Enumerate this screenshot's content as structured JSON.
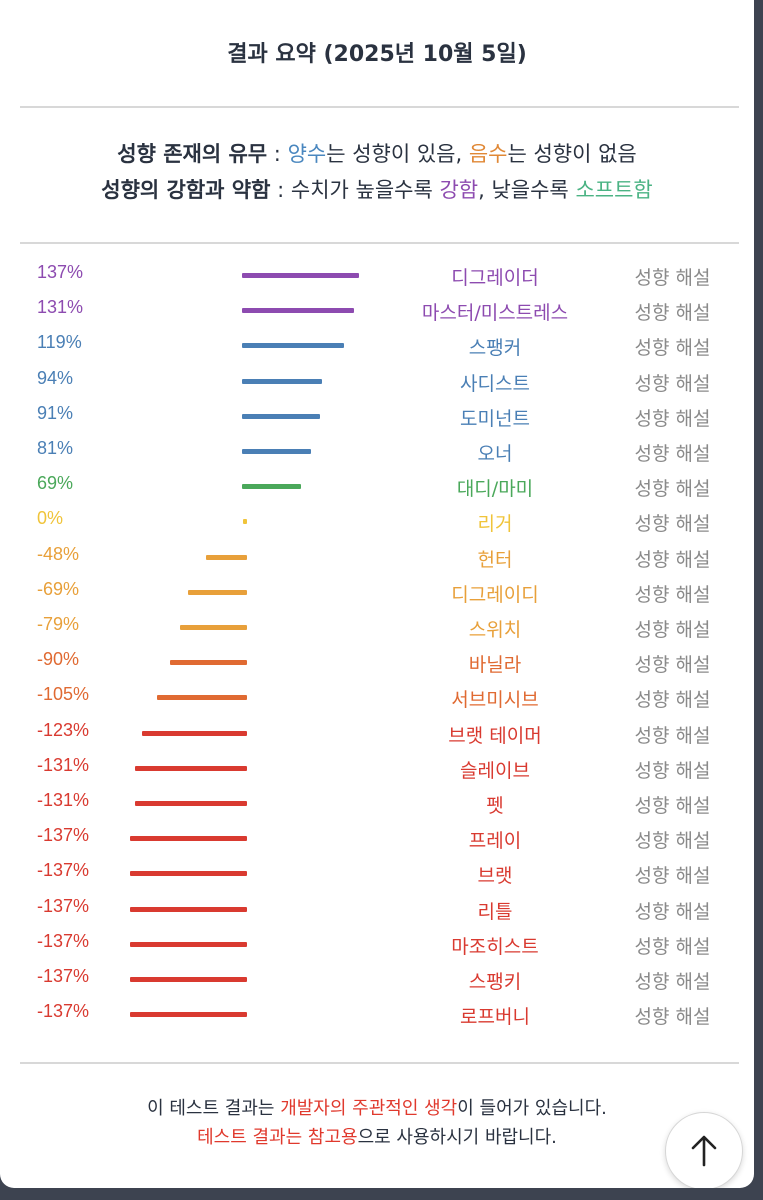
{
  "title": "결과 요약 (2025년 10월 5일)",
  "legend": {
    "line1": {
      "label": "성향 존재의 유무",
      "sep": " : ",
      "pos_word": "양수",
      "pos_rest": "는 성향이 있음, ",
      "neg_word": "음수",
      "neg_rest": "는 성향이 없음"
    },
    "line2": {
      "label": "성향의 강함과 약함",
      "sep": " : 수치가 높을수록 ",
      "strong_word": "강함",
      "mid": ", 낮을수록 ",
      "soft_word": "소프트함"
    }
  },
  "explain_label": "성향 해설",
  "results": [
    {
      "percent": "137%",
      "value": 137,
      "name": "디그레이더",
      "color": "#8d4bb0"
    },
    {
      "percent": "131%",
      "value": 131,
      "name": "마스터/미스트레스",
      "color": "#8d4bb0"
    },
    {
      "percent": "119%",
      "value": 119,
      "name": "스팽커",
      "color": "#4a7fb5"
    },
    {
      "percent": "94%",
      "value": 94,
      "name": "사디스트",
      "color": "#4a7fb5"
    },
    {
      "percent": "91%",
      "value": 91,
      "name": "도미넌트",
      "color": "#4a7fb5"
    },
    {
      "percent": "81%",
      "value": 81,
      "name": "오너",
      "color": "#4a7fb5"
    },
    {
      "percent": "69%",
      "value": 69,
      "name": "대디/마미",
      "color": "#4aa85a"
    },
    {
      "percent": "0%",
      "value": 0,
      "name": "리거",
      "color": "#f0c43a"
    },
    {
      "percent": "-48%",
      "value": -48,
      "name": "헌터",
      "color": "#e8a03a"
    },
    {
      "percent": "-69%",
      "value": -69,
      "name": "디그레이디",
      "color": "#e8a03a"
    },
    {
      "percent": "-79%",
      "value": -79,
      "name": "스위치",
      "color": "#e8a03a"
    },
    {
      "percent": "-90%",
      "value": -90,
      "name": "바닐라",
      "color": "#e06a32"
    },
    {
      "percent": "-105%",
      "value": -105,
      "name": "서브미시브",
      "color": "#e06a32"
    },
    {
      "percent": "-123%",
      "value": -123,
      "name": "브랫 테이머",
      "color": "#d93a30"
    },
    {
      "percent": "-131%",
      "value": -131,
      "name": "슬레이브",
      "color": "#d93a30"
    },
    {
      "percent": "-131%",
      "value": -131,
      "name": "펫",
      "color": "#d93a30"
    },
    {
      "percent": "-137%",
      "value": -137,
      "name": "프레이",
      "color": "#d93a30"
    },
    {
      "percent": "-137%",
      "value": -137,
      "name": "브랫",
      "color": "#d93a30"
    },
    {
      "percent": "-137%",
      "value": -137,
      "name": "리틀",
      "color": "#d93a30"
    },
    {
      "percent": "-137%",
      "value": -137,
      "name": "마조히스트",
      "color": "#d93a30"
    },
    {
      "percent": "-137%",
      "value": -137,
      "name": "스팽키",
      "color": "#d93a30"
    },
    {
      "percent": "-137%",
      "value": -137,
      "name": "로프버니",
      "color": "#d93a30"
    }
  ],
  "footer": {
    "line1_a": "이 테스트 결과는 ",
    "line1_red": "개발자의 주관적인 생각",
    "line1_b": "이 들어가 있습니다.",
    "line2_red": "테스트 결과는 참고용",
    "line2_b": "으로 사용하시기 바랍니다."
  },
  "scroll_top_icon": "arrow-up-icon"
}
